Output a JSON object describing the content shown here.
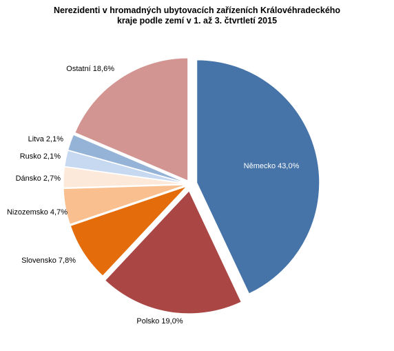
{
  "chart_data": {
    "type": "pie",
    "title": "Nerezidenti  v hromadných  ubytovacích  zařízeních Královéhradeckého\nkraje podle zemí v 1. až 3. čtvrtletí  2015",
    "slices": [
      {
        "name": "Německo",
        "value": 43.0,
        "label": "Německo 43,0%",
        "color": "#4674A9"
      },
      {
        "name": "Polsko",
        "value": 19.0,
        "label": "Polsko 19,0%",
        "color": "#AA4744"
      },
      {
        "name": "Slovensko",
        "value": 7.8,
        "label": "Slovensko 7,8%",
        "color": "#E46C0A"
      },
      {
        "name": "Nizozemsko",
        "value": 4.7,
        "label": "Nizozemsko 4,7%",
        "color": "#F9BF8F"
      },
      {
        "name": "Dánsko",
        "value": 2.7,
        "label": "Dánsko 2,7%",
        "color": "#FDE9D9"
      },
      {
        "name": "Rusko",
        "value": 2.1,
        "label": "Rusko 2,1%",
        "color": "#C6D9F1"
      },
      {
        "name": "Litva",
        "value": 2.1,
        "label": "Litva 2,1%",
        "color": "#95B3D7"
      },
      {
        "name": "Ostatní",
        "value": 18.6,
        "label": "Ostatní  18,6%",
        "color": "#D39592"
      }
    ]
  }
}
